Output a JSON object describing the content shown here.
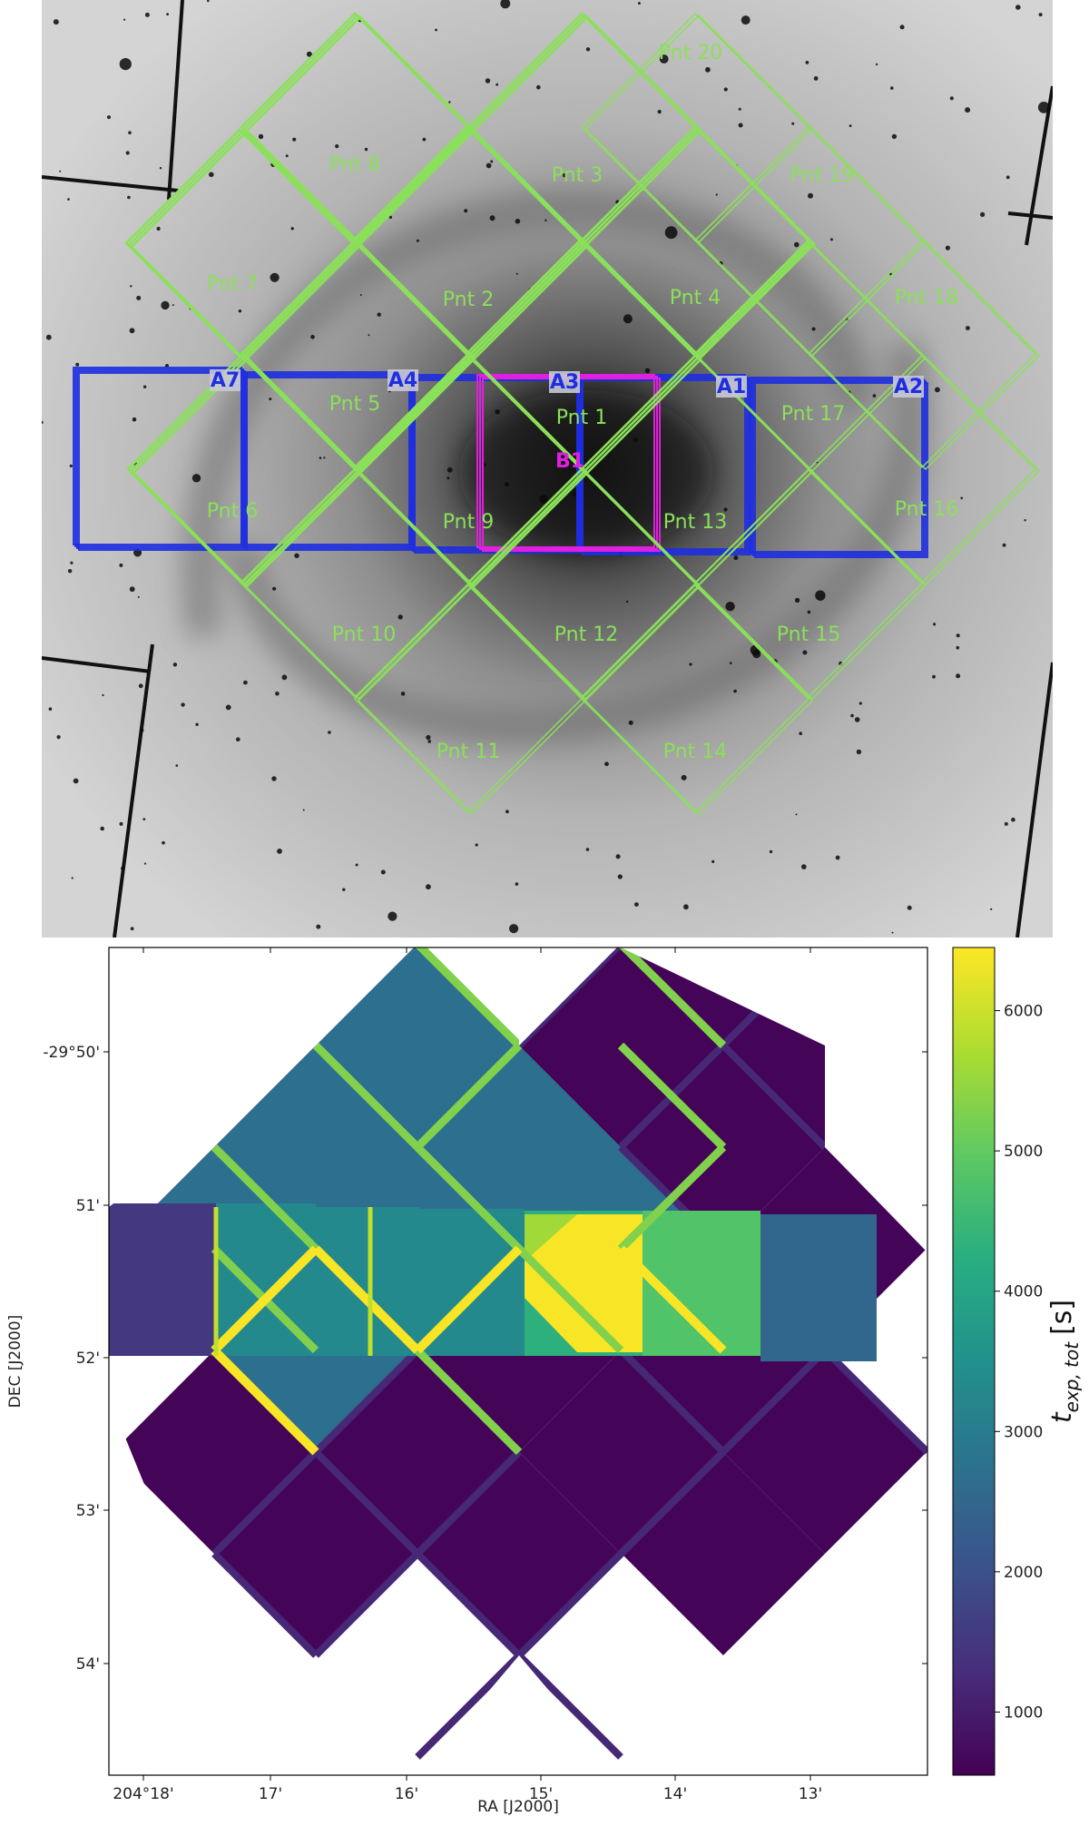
{
  "top_panel": {
    "pointings_thick": [
      {
        "label": "Pnt 1"
      },
      {
        "label": "Pnt 2"
      },
      {
        "label": "Pnt 3"
      },
      {
        "label": "Pnt 4"
      },
      {
        "label": "Pnt 5"
      },
      {
        "label": "Pnt 6"
      },
      {
        "label": "Pnt 7"
      },
      {
        "label": "Pnt 8"
      },
      {
        "label": "Pnt 9"
      }
    ],
    "pointings_thin": [
      {
        "label": "Pnt 10"
      },
      {
        "label": "Pnt 11"
      },
      {
        "label": "Pnt 12"
      },
      {
        "label": "Pnt 13"
      },
      {
        "label": "Pnt 14"
      },
      {
        "label": "Pnt 15"
      },
      {
        "label": "Pnt 16"
      },
      {
        "label": "Pnt 17"
      },
      {
        "label": "Pnt 18"
      },
      {
        "label": "Pnt 19"
      },
      {
        "label": "Pnt 20"
      }
    ],
    "fields_blue": [
      {
        "label": "A7"
      },
      {
        "label": "A4"
      },
      {
        "label": "A3"
      },
      {
        "label": "A1"
      },
      {
        "label": "A2"
      }
    ],
    "field_magenta": {
      "label": "B1"
    },
    "colors": {
      "green": "#8be05a",
      "blue": "#1f2ee0",
      "magenta": "#e020e0"
    }
  },
  "chart_data": {
    "type": "heatmap",
    "xlabel": "RA [J2000]",
    "ylabel": "DEC [J2000]",
    "x_ticks": [
      "204°18'",
      "17'",
      "16'",
      "15'",
      "14'",
      "13'"
    ],
    "y_ticks": [
      "-29°50'",
      "51'",
      "52'",
      "53'",
      "54'"
    ],
    "colorbar": {
      "label": "t_exp, tot [s]",
      "label_main": "t",
      "label_sub": "exp, tot",
      "label_unit": "[s]",
      "ticks": [
        "1000",
        "2000",
        "3000",
        "4000",
        "5000",
        "6000"
      ],
      "min": 550,
      "max": 6450,
      "colormap": "viridis"
    },
    "exposure_levels_s": {
      "single_pointing": 600,
      "pointing_edge_overlap": 1200,
      "pointing_with_field": 2700,
      "field_edge_overlap": 3300,
      "double_pointing_with_field": 4000,
      "pointing_and_field_stack": 4800,
      "central_overlap": 6400
    }
  }
}
